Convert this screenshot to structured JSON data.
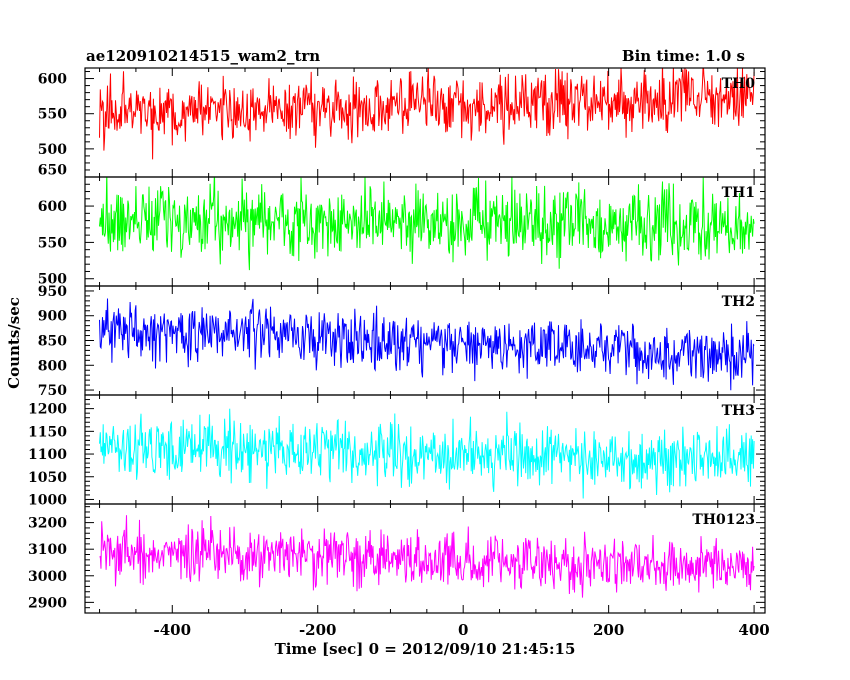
{
  "header": {
    "title": "ae120910214515_wam2_trn",
    "bin_time": "Bin time: 1.0 s"
  },
  "chart_data": {
    "type": "line",
    "xlabel": "Time [sec] 0 = 2012/09/10 21:45:15",
    "ylabel": "Counts/sec",
    "xlim": [
      -520,
      415
    ],
    "x_ticks": [
      -400,
      -200,
      0,
      200,
      400
    ],
    "x_step": 1.0,
    "x_start": -500,
    "x_end": 400,
    "panels": [
      {
        "name": "TH0",
        "color": "#ff0000",
        "ylim": [
          460,
          615
        ],
        "tick_labels": [
          500,
          550,
          600
        ],
        "trend": {
          "x": [
            -500,
            -250,
            0,
            200,
            400
          ],
          "y": [
            553,
            555,
            562,
            568,
            575
          ]
        },
        "spread": 25
      },
      {
        "name": "TH1",
        "color": "#00ff00",
        "ylim": [
          490,
          640
        ],
        "tick_labels": [
          500,
          550,
          600,
          650
        ],
        "trend": {
          "x": [
            -500,
            -250,
            0,
            200,
            400
          ],
          "y": [
            582,
            580,
            575,
            572,
            570
          ]
        },
        "spread": 26
      },
      {
        "name": "TH2",
        "color": "#0000ff",
        "ylim": [
          740,
          960
        ],
        "tick_labels": [
          750,
          800,
          850,
          900,
          950
        ],
        "trend": {
          "x": [
            -500,
            -250,
            0,
            200,
            400
          ],
          "y": [
            870,
            862,
            845,
            828,
            820
          ]
        },
        "spread": 30
      },
      {
        "name": "TH3",
        "color": "#00ffff",
        "ylim": [
          990,
          1230
        ],
        "tick_labels": [
          1000,
          1050,
          1100,
          1150,
          1200
        ],
        "trend": {
          "x": [
            -500,
            -250,
            0,
            200,
            400
          ],
          "y": [
            1115,
            1110,
            1100,
            1092,
            1090
          ]
        },
        "spread": 35
      },
      {
        "name": "TH0123",
        "color": "#ff00ff",
        "ylim": [
          2860,
          3270
        ],
        "tick_labels": [
          2900,
          3000,
          3100,
          3200
        ],
        "trend": {
          "x": [
            -500,
            -250,
            0,
            200,
            400
          ],
          "y": [
            3085,
            3075,
            3055,
            3040,
            3040
          ]
        },
        "spread": 55
      }
    ]
  }
}
